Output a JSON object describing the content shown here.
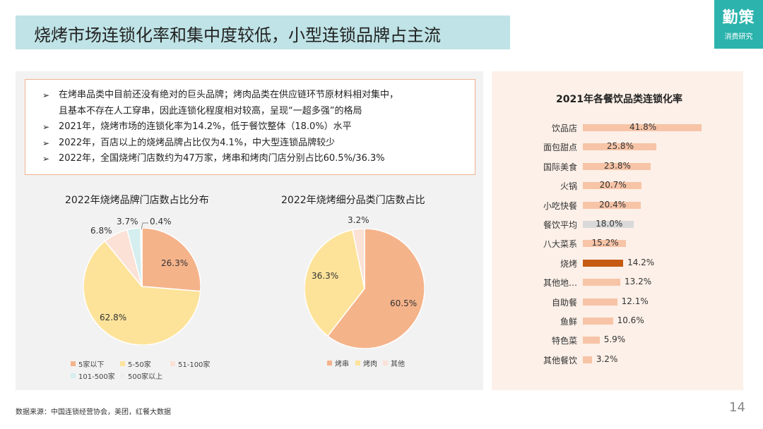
{
  "header": {
    "title": "烧烤市场连锁化率和集中度较低，小型连锁品牌占主流",
    "logo_main": "勤策",
    "logo_sub": "消费研究"
  },
  "bullets": [
    "在烤串品类中目前还没有绝对的巨头品牌；烤肉品类在供应链环节原材料相对集中，",
    "且基本不存在人工穿串，因此连锁化程度相对较高，呈现“一超多强”的格局",
    "2021年，烧烤市场的连锁化率为14.2%，低于餐饮整体（18.0%）水平",
    "2022年，百店以上的烧烤品牌占比仅为4.1%，中大型连锁品牌较少",
    "2022年，全国烧烤门店数约为47万家，烤串和烤肉门店分别占比60.5%/36.3%"
  ],
  "bullet_arrow": "➢",
  "footer": {
    "source": "数据来源：中国连锁经营协会，美团，红餐大数据",
    "page": "14"
  },
  "chart_data": [
    {
      "type": "pie",
      "title": "2022年烧烤品牌门店数占比分布",
      "labels": [
        "5家以下",
        "5-50家",
        "51-100家",
        "101-500家",
        "500家以上"
      ],
      "values": [
        26.3,
        62.8,
        6.8,
        3.7,
        0.4
      ],
      "value_labels": [
        "26.3%",
        "62.8%",
        "6.8%",
        "3.7%",
        "0.4%"
      ],
      "colors": [
        "#f5b38a",
        "#fde39a",
        "#fbe1d6",
        "#d5eef0",
        "#eeeeee"
      ],
      "legend": "bottom"
    },
    {
      "type": "pie",
      "title": "2022年烧烤细分品类门店数占比",
      "labels": [
        "烤串",
        "烤肉",
        "其他"
      ],
      "values": [
        60.5,
        36.3,
        3.2
      ],
      "value_labels": [
        "60.5%",
        "36.3%",
        "3.2%"
      ],
      "colors": [
        "#f5b38a",
        "#fde39a",
        "#fbe1d6"
      ],
      "legend": "bottom"
    },
    {
      "type": "bar",
      "orientation": "horizontal",
      "title": "2021年各餐饮品类连锁化率",
      "categories": [
        "饮品店",
        "面包甜点",
        "国际美食",
        "火锅",
        "小吃快餐",
        "餐饮平均",
        "八大菜系",
        "烧烤",
        "其他地…",
        "自助餐",
        "鱼鲜",
        "特色菜",
        "其他餐饮"
      ],
      "values": [
        41.8,
        25.8,
        23.8,
        20.7,
        20.4,
        18.0,
        15.2,
        14.2,
        13.2,
        12.1,
        10.6,
        5.9,
        3.2
      ],
      "value_labels": [
        "41.8%",
        "25.8%",
        "23.8%",
        "20.7%",
        "20.4%",
        "18.0%",
        "15.2%",
        "14.2%",
        "13.2%",
        "12.1%",
        "10.6%",
        "5.9%",
        "3.2%"
      ],
      "colors": [
        "#f7c4a7",
        "#f7c4a7",
        "#f7c4a7",
        "#f7c4a7",
        "#f7c4a7",
        "#d9d9d9",
        "#f7c4a7",
        "#c55a11",
        "#f7c4a7",
        "#f7c4a7",
        "#f7c4a7",
        "#f7c4a7",
        "#f7c4a7"
      ],
      "xlim": [
        0,
        45
      ]
    }
  ]
}
